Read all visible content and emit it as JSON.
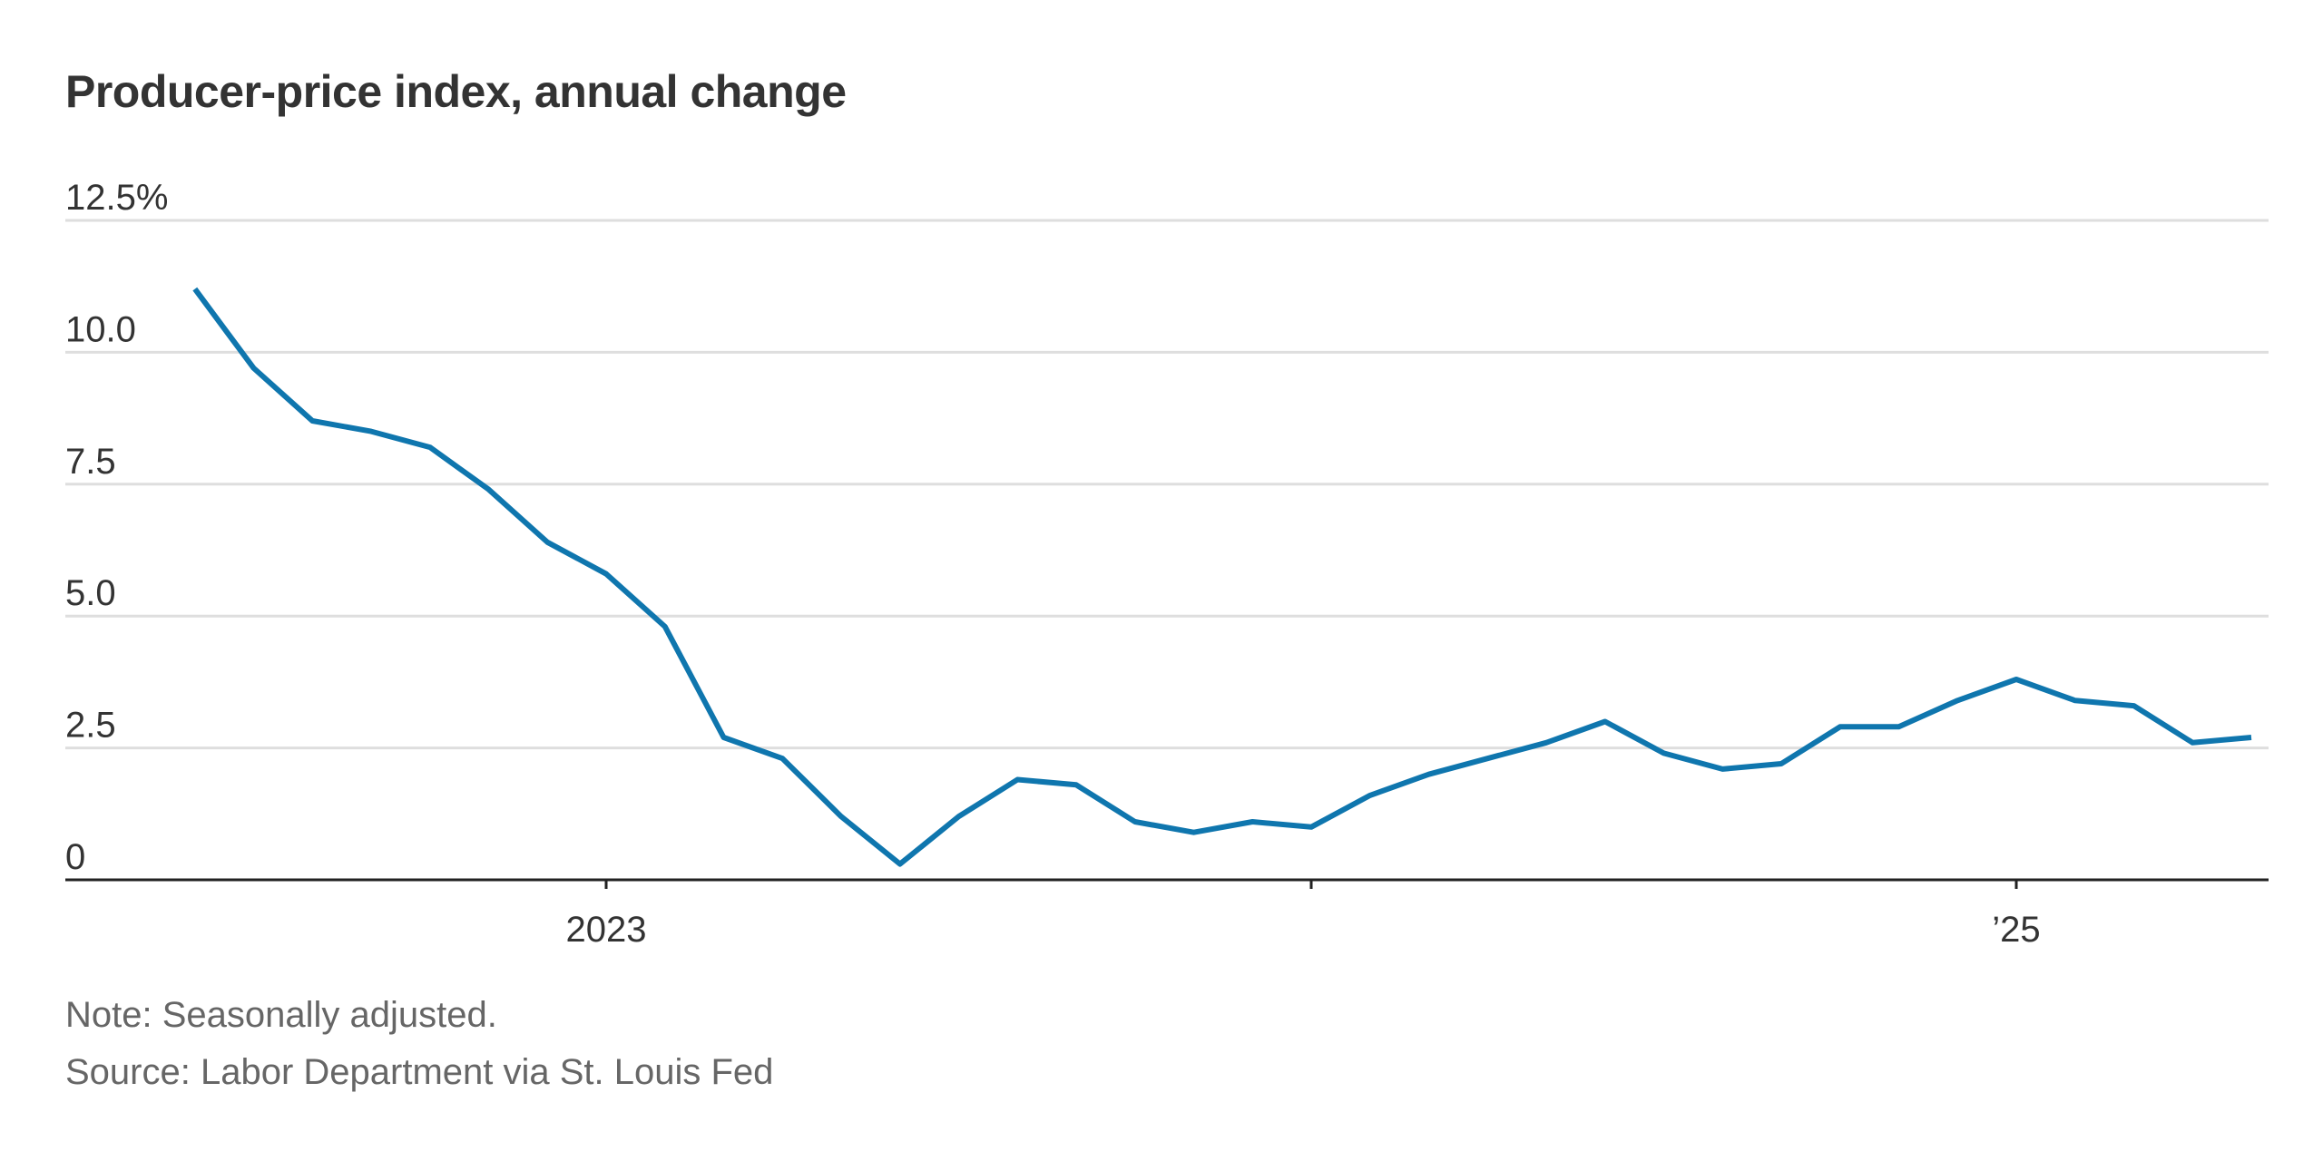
{
  "chart_data": {
    "type": "line",
    "title": "Producer-price index, annual change",
    "xlabel": "",
    "ylabel": "",
    "ylim": [
      0,
      12.5
    ],
    "y_ticks": [
      {
        "value": 12.5,
        "label": "12.5%"
      },
      {
        "value": 10,
        "label": "10.0"
      },
      {
        "value": 7.5,
        "label": "7.5"
      },
      {
        "value": 5,
        "label": "5.0"
      },
      {
        "value": 2.5,
        "label": "2.5"
      },
      {
        "value": 0,
        "label": "0"
      }
    ],
    "x_range": [
      "2022-06",
      "2025-06"
    ],
    "x_ticks": [
      {
        "value": "2023-01",
        "label": "2023"
      },
      {
        "value": "2024-01",
        "label": ""
      },
      {
        "value": "2025-01",
        "label": "’25"
      }
    ],
    "grid": true,
    "legend": "none",
    "series": [
      {
        "color": "#0f76ae",
        "points": [
          {
            "x": "2022-06",
            "y": 11.2
          },
          {
            "x": "2022-07",
            "y": 9.7
          },
          {
            "x": "2022-08",
            "y": 8.7
          },
          {
            "x": "2022-09",
            "y": 8.5
          },
          {
            "x": "2022-10",
            "y": 8.2
          },
          {
            "x": "2022-11",
            "y": 7.4
          },
          {
            "x": "2022-12",
            "y": 6.4
          },
          {
            "x": "2023-01",
            "y": 5.8
          },
          {
            "x": "2023-02",
            "y": 4.8
          },
          {
            "x": "2023-03",
            "y": 2.7
          },
          {
            "x": "2023-04",
            "y": 2.3
          },
          {
            "x": "2023-05",
            "y": 1.2
          },
          {
            "x": "2023-06",
            "y": 0.3
          },
          {
            "x": "2023-07",
            "y": 1.2
          },
          {
            "x": "2023-08",
            "y": 1.9
          },
          {
            "x": "2023-09",
            "y": 1.8
          },
          {
            "x": "2023-10",
            "y": 1.1
          },
          {
            "x": "2023-11",
            "y": 0.9
          },
          {
            "x": "2023-12",
            "y": 1.1
          },
          {
            "x": "2024-01",
            "y": 1.0
          },
          {
            "x": "2024-02",
            "y": 1.6
          },
          {
            "x": "2024-03",
            "y": 2.0
          },
          {
            "x": "2024-04",
            "y": 2.3
          },
          {
            "x": "2024-05",
            "y": 2.6
          },
          {
            "x": "2024-06",
            "y": 3.0
          },
          {
            "x": "2024-07",
            "y": 2.4
          },
          {
            "x": "2024-08",
            "y": 2.1
          },
          {
            "x": "2024-09",
            "y": 2.2
          },
          {
            "x": "2024-10",
            "y": 2.9
          },
          {
            "x": "2024-11",
            "y": 2.9
          },
          {
            "x": "2024-12",
            "y": 3.4
          },
          {
            "x": "2025-01",
            "y": 3.8
          },
          {
            "x": "2025-02",
            "y": 3.4
          },
          {
            "x": "2025-03",
            "y": 3.3
          },
          {
            "x": "2025-04",
            "y": 2.6
          },
          {
            "x": "2025-05",
            "y": 2.7
          }
        ]
      }
    ],
    "note": "Note: Seasonally adjusted.",
    "source": "Source: Labor Department via St. Louis Fed"
  },
  "colors": {
    "line": "#0f76ae",
    "grid": "#dedede",
    "axis": "#222222",
    "text": "#333333",
    "footer_text": "#666666"
  }
}
